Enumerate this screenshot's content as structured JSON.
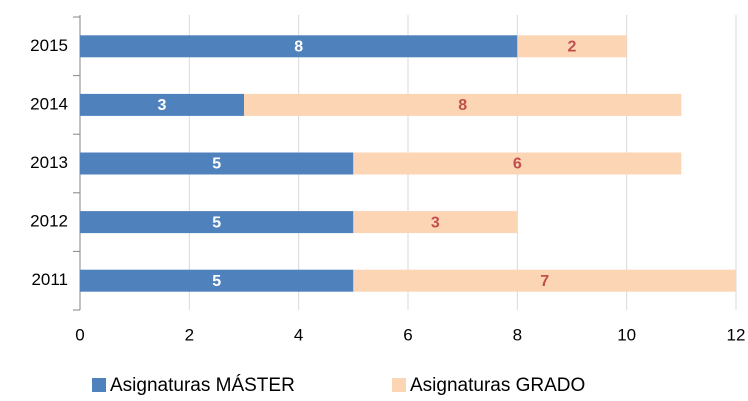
{
  "chart_data": {
    "type": "stacked_barh",
    "categories": [
      "2015",
      "2014",
      "2013",
      "2012",
      "2011"
    ],
    "series": [
      {
        "name": "Asignaturas MÁSTER",
        "color": "#4f81bd",
        "label_color": "#ffffff",
        "values": [
          8,
          3,
          5,
          5,
          5
        ]
      },
      {
        "name": "Asignaturas GRADO",
        "color": "#fcd5b5",
        "label_color": "#c0504d",
        "values": [
          2,
          8,
          6,
          3,
          7
        ]
      }
    ],
    "xlim": [
      0,
      12
    ],
    "xticks": [
      0,
      2,
      4,
      6,
      8,
      10,
      12
    ],
    "grid": true,
    "legend": "bottom"
  }
}
